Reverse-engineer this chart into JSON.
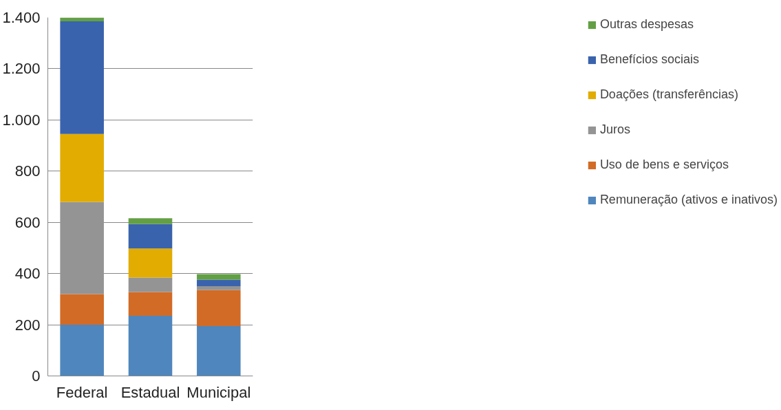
{
  "chart_data": {
    "type": "bar",
    "stacked": true,
    "categories": [
      "Federal",
      "Estadual",
      "Municipal"
    ],
    "series": [
      {
        "name": "Remuneração (ativos e inativos)",
        "color": "#4f86bd",
        "values": [
          200,
          235,
          195
        ]
      },
      {
        "name": "Uso de bens e serviços",
        "color": "#d26b26",
        "values": [
          120,
          93,
          140
        ]
      },
      {
        "name": "Juros",
        "color": "#949494",
        "values": [
          360,
          56,
          16
        ]
      },
      {
        "name": "Doações (transferências)",
        "color": "#e2ac00",
        "values": [
          265,
          114,
          0
        ]
      },
      {
        "name": "Benefícios sociais",
        "color": "#3a63ad",
        "values": [
          440,
          95,
          25
        ]
      },
      {
        "name": "Outras despesas",
        "color": "#63a045",
        "values": [
          15,
          23,
          22
        ]
      }
    ],
    "ylim": [
      0,
      1400
    ],
    "yticks": [
      0,
      200,
      400,
      600,
      800,
      {
        "value": 1000,
        "label": "1.000"
      },
      {
        "value": 1200,
        "label": "1.200"
      },
      {
        "value": 1400,
        "label": "1.400"
      }
    ],
    "grid": "y",
    "legend": "right"
  }
}
